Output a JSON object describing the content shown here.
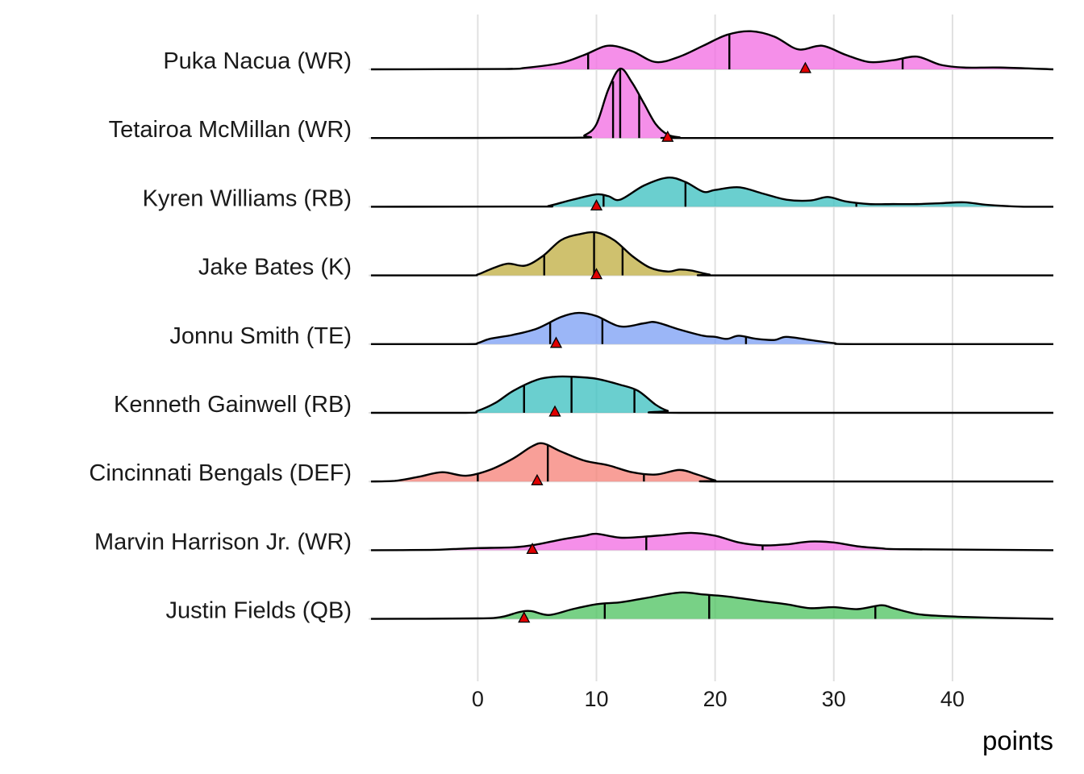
{
  "chart_data": {
    "type": "ridgeline",
    "xlabel": "points",
    "xlim": [
      -9.2,
      48.5
    ],
    "xticks": [
      0,
      10,
      20,
      30,
      40
    ],
    "grid": true,
    "rows": [
      {
        "label": "Puka Nacua (WR)",
        "color": "#f270e3",
        "height": 0.55,
        "density": [
          [
            -9,
            0
          ],
          [
            2,
            0.2
          ],
          [
            4,
            0.8
          ],
          [
            7,
            3.5
          ],
          [
            9,
            8
          ],
          [
            11,
            13
          ],
          [
            13,
            10
          ],
          [
            15,
            4
          ],
          [
            17,
            7
          ],
          [
            19,
            13
          ],
          [
            21,
            19
          ],
          [
            23,
            21
          ],
          [
            25,
            18
          ],
          [
            27,
            11
          ],
          [
            29,
            13
          ],
          [
            31,
            8
          ],
          [
            33,
            4
          ],
          [
            35,
            5
          ],
          [
            37,
            7
          ],
          [
            39,
            2.5
          ],
          [
            41,
            1
          ],
          [
            44,
            1
          ],
          [
            48.5,
            0
          ]
        ],
        "quantiles": [
          9.3,
          21.2,
          35.8
        ],
        "projection": 27.6
      },
      {
        "label": "Tetairoa McMillan (WR)",
        "color": "#f270e3",
        "height": 1.0,
        "density": [
          [
            -9,
            0
          ],
          [
            8,
            0.5
          ],
          [
            9,
            4
          ],
          [
            10,
            20
          ],
          [
            11,
            70
          ],
          [
            12,
            100
          ],
          [
            13,
            80
          ],
          [
            14,
            50
          ],
          [
            15,
            20
          ],
          [
            16,
            5
          ],
          [
            17,
            1
          ],
          [
            18,
            0
          ],
          [
            48.5,
            0
          ]
        ],
        "quantiles": [
          11.4,
          12.0,
          13.6
        ],
        "projection": 16.0
      },
      {
        "label": "Kyren Williams (RB)",
        "color": "#40c1c1",
        "height": 0.42,
        "density": [
          [
            -9,
            0
          ],
          [
            5,
            0.2
          ],
          [
            6,
            1
          ],
          [
            8,
            8
          ],
          [
            10,
            14
          ],
          [
            11,
            12
          ],
          [
            12,
            8
          ],
          [
            14,
            24
          ],
          [
            16,
            33
          ],
          [
            17.5,
            28
          ],
          [
            19,
            17
          ],
          [
            20,
            19
          ],
          [
            22,
            22
          ],
          [
            24,
            15
          ],
          [
            26,
            8
          ],
          [
            28,
            7
          ],
          [
            29.5,
            11
          ],
          [
            31,
            6
          ],
          [
            33,
            3
          ],
          [
            35,
            3
          ],
          [
            37,
            3
          ],
          [
            39,
            4
          ],
          [
            41,
            5
          ],
          [
            43,
            2
          ],
          [
            46,
            0
          ],
          [
            48.5,
            0
          ]
        ],
        "quantiles": [
          10.6,
          17.5,
          31.9
        ],
        "projection": 10.0
      },
      {
        "label": "Jake Bates (K)",
        "color": "#c2af45",
        "height": 0.62,
        "density": [
          [
            -9,
            0
          ],
          [
            -1,
            0
          ],
          [
            0,
            1
          ],
          [
            1,
            6
          ],
          [
            2.5,
            12
          ],
          [
            4,
            10
          ],
          [
            5.5,
            20
          ],
          [
            7,
            36
          ],
          [
            8.5,
            42
          ],
          [
            10,
            44
          ],
          [
            11.5,
            36
          ],
          [
            13,
            20
          ],
          [
            14.5,
            8
          ],
          [
            16,
            4
          ],
          [
            17,
            6
          ],
          [
            18,
            5
          ],
          [
            19.5,
            1
          ],
          [
            21,
            0
          ],
          [
            48.5,
            0
          ]
        ],
        "quantiles": [
          5.6,
          9.8,
          12.2
        ],
        "projection": 10.0
      },
      {
        "label": "Jonnu Smith (TE)",
        "color": "#7fa2f5",
        "height": 0.45,
        "density": [
          [
            -9,
            0
          ],
          [
            -1,
            0
          ],
          [
            0,
            1
          ],
          [
            1,
            5
          ],
          [
            3,
            9
          ],
          [
            5,
            15
          ],
          [
            7,
            26
          ],
          [
            8.5,
            30
          ],
          [
            10,
            27
          ],
          [
            12,
            17
          ],
          [
            14,
            20
          ],
          [
            15,
            21
          ],
          [
            17,
            14
          ],
          [
            19,
            8
          ],
          [
            20,
            7
          ],
          [
            21,
            5
          ],
          [
            22,
            8
          ],
          [
            23.5,
            5
          ],
          [
            25,
            4
          ],
          [
            26,
            7
          ],
          [
            28,
            4
          ],
          [
            30,
            1
          ],
          [
            32,
            0
          ],
          [
            48.5,
            0
          ]
        ],
        "quantiles": [
          6.1,
          10.5,
          22.6
        ],
        "projection": 6.6
      },
      {
        "label": "Kenneth Gainwell (RB)",
        "color": "#40c1c1",
        "height": 0.52,
        "density": [
          [
            -9,
            0
          ],
          [
            -1,
            0
          ],
          [
            0,
            2
          ],
          [
            1.5,
            10
          ],
          [
            3,
            22
          ],
          [
            5,
            33
          ],
          [
            6.5,
            36
          ],
          [
            8,
            36
          ],
          [
            10,
            34
          ],
          [
            12,
            28
          ],
          [
            13.5,
            22
          ],
          [
            15,
            8
          ],
          [
            16,
            2
          ],
          [
            17,
            0
          ],
          [
            48.5,
            0
          ]
        ],
        "quantiles": [
          3.9,
          7.9,
          13.2
        ],
        "projection": 6.5
      },
      {
        "label": "Cincinnati Bengals (DEF)",
        "color": "#f6847b",
        "height": 0.55,
        "density": [
          [
            -9,
            0
          ],
          [
            -7,
            0.5
          ],
          [
            -5,
            4
          ],
          [
            -3,
            8
          ],
          [
            -1,
            5
          ],
          [
            1,
            10
          ],
          [
            3,
            20
          ],
          [
            4.5,
            30
          ],
          [
            5.5,
            33
          ],
          [
            7,
            26
          ],
          [
            9,
            18
          ],
          [
            11,
            14
          ],
          [
            13,
            8
          ],
          [
            15,
            6
          ],
          [
            17,
            10
          ],
          [
            18.5,
            6
          ],
          [
            20,
            1
          ],
          [
            21,
            0
          ],
          [
            48.5,
            0
          ]
        ],
        "quantiles": [
          0.0,
          5.9,
          14.0
        ],
        "projection": 5.0
      },
      {
        "label": "Marvin Harrison Jr. (WR)",
        "color": "#f270e3",
        "height": 0.25,
        "density": [
          [
            -9,
            0
          ],
          [
            -4,
            0.3
          ],
          [
            -2,
            1.2
          ],
          [
            0,
            2.2
          ],
          [
            3,
            3
          ],
          [
            5,
            6
          ],
          [
            7,
            11
          ],
          [
            9,
            15
          ],
          [
            10,
            17
          ],
          [
            12,
            13
          ],
          [
            14,
            14
          ],
          [
            16,
            16
          ],
          [
            18,
            18
          ],
          [
            20,
            15
          ],
          [
            22,
            8
          ],
          [
            24,
            5
          ],
          [
            26,
            6
          ],
          [
            28,
            9
          ],
          [
            30,
            8
          ],
          [
            32,
            4
          ],
          [
            34,
            2
          ],
          [
            36,
            1
          ],
          [
            48.5,
            0
          ]
        ],
        "quantiles": [
          4.6,
          14.2,
          24.0
        ],
        "projection": 4.6
      },
      {
        "label": "Justin Fields (QB)",
        "color": "#52c464",
        "height": 0.38,
        "density": [
          [
            -9,
            0
          ],
          [
            0,
            0.5
          ],
          [
            2,
            2
          ],
          [
            3.5,
            7
          ],
          [
            4.5,
            8
          ],
          [
            6,
            4
          ],
          [
            8,
            10
          ],
          [
            10,
            15
          ],
          [
            12,
            17
          ],
          [
            14,
            21
          ],
          [
            17,
            27
          ],
          [
            19,
            25
          ],
          [
            21,
            23
          ],
          [
            24,
            18
          ],
          [
            26,
            15
          ],
          [
            28,
            11
          ],
          [
            30,
            12
          ],
          [
            32,
            10
          ],
          [
            34,
            14
          ],
          [
            35,
            11
          ],
          [
            37,
            5
          ],
          [
            39,
            3
          ],
          [
            41,
            2
          ],
          [
            44,
            1
          ],
          [
            48.5,
            0
          ]
        ],
        "quantiles": [
          10.7,
          19.5,
          33.5
        ],
        "projection": 3.9
      }
    ]
  }
}
